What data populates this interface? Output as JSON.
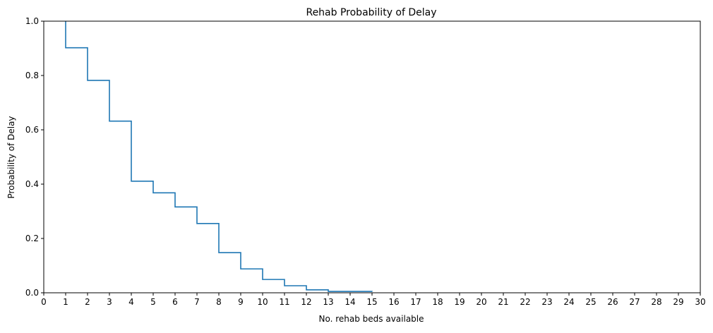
{
  "chart_data": {
    "type": "line",
    "title": "Rehab Probability of Delay",
    "xlabel": "No. rehab beds available",
    "ylabel": "Probability of Delay",
    "xlim": [
      0,
      30
    ],
    "ylim": [
      0,
      1.0
    ],
    "x_ticks": [
      0,
      1,
      2,
      3,
      4,
      5,
      6,
      7,
      8,
      9,
      10,
      11,
      12,
      13,
      14,
      15,
      16,
      17,
      18,
      19,
      20,
      21,
      22,
      23,
      24,
      25,
      26,
      27,
      28,
      29,
      30
    ],
    "y_ticks": [
      "0.0",
      "0.2",
      "0.4",
      "0.6",
      "0.8",
      "1.0"
    ],
    "step": "post",
    "grid": false,
    "line_color": "#1f77b4",
    "x": [
      1,
      2,
      3,
      4,
      5,
      6,
      7,
      8,
      9,
      10,
      11,
      12,
      13,
      14,
      15
    ],
    "y": [
      0.902,
      0.782,
      0.632,
      0.411,
      0.368,
      0.316,
      0.255,
      0.148,
      0.088,
      0.049,
      0.026,
      0.011,
      0.005,
      0.005,
      0.004
    ]
  }
}
